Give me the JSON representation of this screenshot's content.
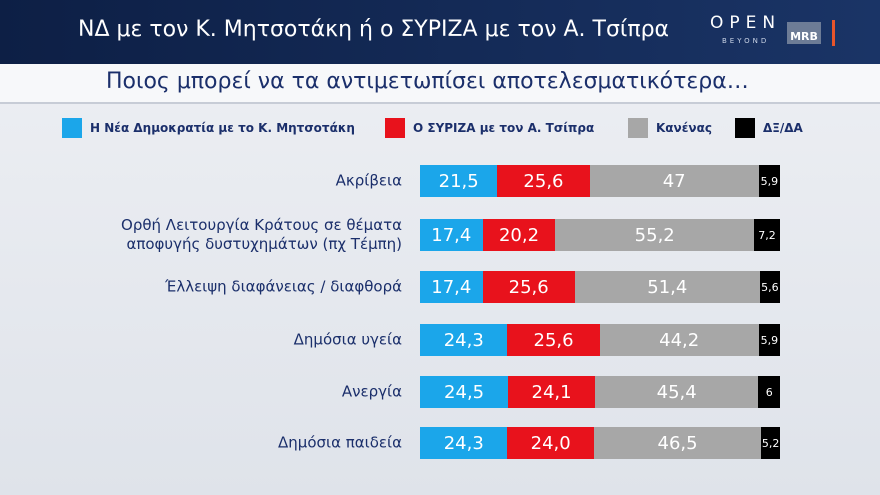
{
  "brand": {
    "open": "OPEN",
    "beyond": "BEYOND",
    "mrb": "MRB"
  },
  "chart_data": {
    "type": "stacked-bar-horizontal",
    "title": "ΝΔ με τον Κ. Μητσοτάκη ή ο ΣΥΡΙΖΑ με τον Α. Τσίπρα",
    "subtitle": "Ποιος μπορεί να τα αντιμετωπίσει αποτελεσματικότερα…",
    "categories": [
      "Ακρίβεια",
      "Ορθή Λειτουργία Κράτους σε θέματα\nαποφυγής δυστυχημάτων (πχ Τέμπη)",
      "Έλλειψη διαφάνειας / διαφθορά",
      "Δημόσια υγεία",
      "Ανεργία",
      "Δημόσια παιδεία"
    ],
    "series": [
      {
        "name": "Η Νέα Δημοκρατία με το Κ. Μητσοτάκη",
        "color": "#1ba6ea",
        "values": [
          21.5,
          17.4,
          17.4,
          24.3,
          24.5,
          24.3
        ],
        "value_labels": [
          "21,5",
          "17,4",
          "17,4",
          "24,3",
          "24,5",
          "24,3"
        ]
      },
      {
        "name": "Ο ΣΥΡΙΖΑ με τον Α. Τσίπρα",
        "color": "#e8121c",
        "values": [
          25.6,
          20.2,
          25.6,
          25.6,
          24.1,
          24.0
        ],
        "value_labels": [
          "25,6",
          "20,2",
          "25,6",
          "25,6",
          "24,1",
          "24,0"
        ]
      },
      {
        "name": "Κανένας",
        "color": "#a7a7a7",
        "values": [
          47,
          55.2,
          51.4,
          44.2,
          45.4,
          46.5
        ],
        "value_labels": [
          "47",
          "55,2",
          "51,4",
          "44,2",
          "45,4",
          "46,5"
        ]
      },
      {
        "name": "ΔΞ/ΔΑ",
        "color": "#000000",
        "values": [
          5.9,
          7.2,
          5.6,
          5.9,
          6,
          5.2
        ],
        "value_labels": [
          "5,9",
          "7,2",
          "5,6",
          "5,9",
          "6",
          "5,2"
        ]
      }
    ]
  }
}
